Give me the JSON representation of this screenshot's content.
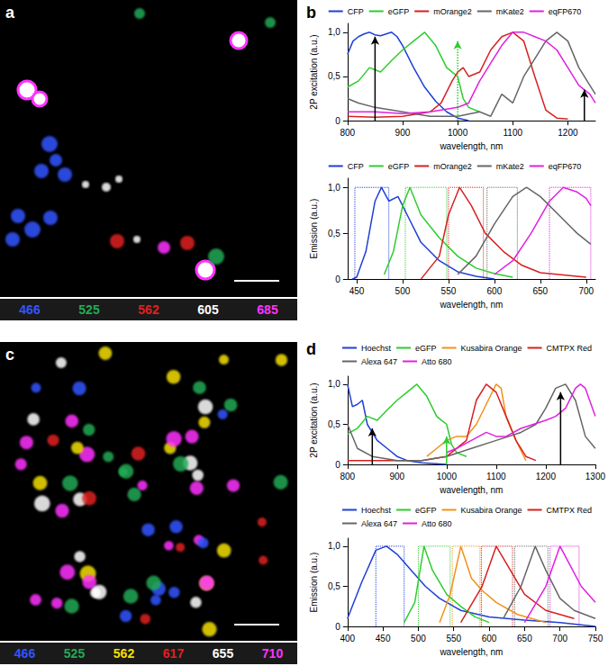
{
  "images": [
    {
      "panel": "a",
      "channels": [
        {
          "label": "466",
          "color": "#3355ff"
        },
        {
          "label": "525",
          "color": "#22aa55"
        },
        {
          "label": "562",
          "color": "#e02020"
        },
        {
          "label": "605",
          "color": "#ffffff"
        },
        {
          "label": "685",
          "color": "#ff33ff"
        }
      ]
    },
    {
      "panel": "c",
      "channels": [
        {
          "label": "466",
          "color": "#3355ff"
        },
        {
          "label": "525",
          "color": "#22aa55"
        },
        {
          "label": "562",
          "color": "#f5e000"
        },
        {
          "label": "617",
          "color": "#e02020"
        },
        {
          "label": "655",
          "color": "#ffffff"
        },
        {
          "label": "710",
          "color": "#ff33ff"
        }
      ]
    }
  ],
  "chart_data": [
    {
      "type": "line",
      "panel": "b",
      "xlabel": "wavelength, nm",
      "ylabel": "2P excitation (a.u.)",
      "xlim": [
        800,
        1250
      ],
      "xticks": [
        800,
        900,
        1000,
        1100,
        1200
      ],
      "ylim": [
        0,
        1.1
      ],
      "yticks": [
        0,
        {
          "value": 0.5,
          "label": "0,5"
        },
        {
          "value": 1,
          "label": "1,0"
        }
      ],
      "grid": false,
      "legend": "top",
      "series": [
        {
          "name": "CFP",
          "color": "#1f3fd6",
          "x": [
            800,
            810,
            820,
            830,
            840,
            850,
            860,
            870,
            880,
            890,
            900,
            920,
            940,
            960,
            980,
            1000,
            1020
          ],
          "values": [
            0.75,
            0.9,
            0.95,
            0.98,
            1.0,
            0.97,
            0.96,
            0.98,
            1.0,
            0.95,
            0.85,
            0.6,
            0.38,
            0.22,
            0.1,
            0.03,
            0.0
          ]
        },
        {
          "name": "eGFP",
          "color": "#2ecc2e",
          "x": [
            800,
            820,
            840,
            860,
            880,
            900,
            920,
            940,
            960,
            980,
            990,
            1000,
            1010,
            1020,
            1040
          ],
          "values": [
            0.38,
            0.45,
            0.6,
            0.55,
            0.68,
            0.8,
            0.9,
            1.0,
            0.85,
            0.6,
            0.55,
            0.5,
            0.25,
            0.15,
            0.1
          ]
        },
        {
          "name": "mOrange2",
          "color": "#d62020",
          "x": [
            800,
            850,
            900,
            950,
            970,
            990,
            1000,
            1010,
            1020,
            1040,
            1060,
            1080,
            1100,
            1120,
            1140,
            1160,
            1180,
            1200
          ],
          "values": [
            0.05,
            0.04,
            0.05,
            0.1,
            0.2,
            0.45,
            0.55,
            0.6,
            0.5,
            0.55,
            0.8,
            0.95,
            1.0,
            0.9,
            0.5,
            0.12,
            0.03,
            0.02
          ]
        },
        {
          "name": "mKate2",
          "color": "#666666",
          "x": [
            800,
            820,
            850,
            900,
            950,
            1000,
            1040,
            1060,
            1080,
            1100,
            1120,
            1140,
            1160,
            1180,
            1200,
            1220,
            1240,
            1250
          ],
          "values": [
            0.25,
            0.2,
            0.15,
            0.1,
            0.05,
            0.05,
            0.1,
            0.05,
            0.3,
            0.2,
            0.5,
            0.7,
            0.9,
            1.0,
            0.9,
            0.6,
            0.4,
            0.3
          ]
        },
        {
          "name": "eqFP670",
          "color": "#e020e0",
          "x": [
            800,
            850,
            900,
            950,
            1000,
            1020,
            1040,
            1060,
            1080,
            1100,
            1120,
            1140,
            1160,
            1180,
            1200,
            1220,
            1240,
            1250
          ],
          "values": [
            0.1,
            0.1,
            0.08,
            0.1,
            0.15,
            0.2,
            0.45,
            0.65,
            0.85,
            1.0,
            1.0,
            0.95,
            0.9,
            0.8,
            0.6,
            0.4,
            0.3,
            0.2
          ]
        }
      ],
      "arrows": [
        {
          "x": 850,
          "y": 0.95,
          "color": "#000000",
          "line_style": "solid"
        },
        {
          "x": 1000,
          "y": 0.9,
          "color": "#2ecc2e",
          "line_style": "dotted"
        },
        {
          "x": 1230,
          "y": 0.35,
          "color": "#000000",
          "line_style": "solid"
        }
      ]
    },
    {
      "type": "line",
      "xlabel": "wavelength, nm",
      "ylabel": "Emission (a.u.)",
      "xlim": [
        440,
        710
      ],
      "xticks": [
        450,
        500,
        550,
        600,
        650,
        700
      ],
      "ylim": [
        0,
        1.1
      ],
      "yticks": [
        0,
        {
          "value": 0.5,
          "label": "0,5"
        },
        {
          "value": 1,
          "label": "1,0"
        }
      ],
      "grid": false,
      "legend": "top",
      "series": [
        {
          "name": "CFP",
          "color": "#1f3fd6",
          "x": [
            445,
            450,
            460,
            470,
            477,
            485,
            495,
            505,
            520,
            540,
            560,
            580,
            600
          ],
          "values": [
            0,
            0.02,
            0.3,
            0.85,
            1.0,
            0.85,
            0.9,
            0.7,
            0.4,
            0.2,
            0.08,
            0.03,
            0.0
          ]
        },
        {
          "name": "eGFP",
          "color": "#2ecc2e",
          "x": [
            480,
            490,
            500,
            508,
            520,
            540,
            560,
            580,
            600,
            620
          ],
          "values": [
            0.05,
            0.3,
            0.8,
            1.0,
            0.7,
            0.45,
            0.25,
            0.12,
            0.06,
            0.02
          ]
        },
        {
          "name": "mOrange2",
          "color": "#d62020",
          "x": [
            520,
            540,
            550,
            562,
            575,
            590,
            610,
            630,
            650,
            700
          ],
          "values": [
            0,
            0.25,
            0.7,
            1.0,
            0.8,
            0.5,
            0.3,
            0.15,
            0.07,
            0.02
          ]
        },
        {
          "name": "mKate2",
          "color": "#666666",
          "x": [
            560,
            580,
            600,
            620,
            635,
            650,
            670,
            690,
            705
          ],
          "values": [
            0.05,
            0.25,
            0.6,
            0.9,
            1.0,
            0.9,
            0.7,
            0.5,
            0.38
          ]
        },
        {
          "name": "eqFP670",
          "color": "#e020e0",
          "x": [
            600,
            620,
            640,
            660,
            675,
            690,
            700,
            705
          ],
          "values": [
            0.05,
            0.2,
            0.5,
            0.85,
            1.0,
            0.95,
            0.88,
            0.8
          ]
        }
      ],
      "detection_bands": [
        {
          "color": "#1f3fd6",
          "range": [
            448,
            485
          ],
          "level": 1,
          "line_style": "dotted"
        },
        {
          "color": "#2ecc2e",
          "range": [
            503,
            548
          ],
          "level": 1,
          "line_style": "dotted"
        },
        {
          "color": "#d62020",
          "range": [
            550,
            588
          ],
          "level": 1,
          "line_style": "dotted"
        },
        {
          "color": "#666666",
          "range": [
            592,
            625
          ],
          "level": 1,
          "line_style": "dotted"
        },
        {
          "color": "#e020e0",
          "range": [
            660,
            705
          ],
          "level": 1,
          "line_style": "dotted"
        }
      ]
    },
    {
      "type": "line",
      "panel": "d",
      "xlabel": "wavelength, nm",
      "ylabel": "2P excitation (a.u.)",
      "xlim": [
        800,
        1300
      ],
      "xticks": [
        800,
        900,
        1000,
        1100,
        1200,
        1300
      ],
      "ylim": [
        0,
        1.1
      ],
      "yticks": [
        0,
        {
          "value": 0.5,
          "label": "0,5"
        },
        {
          "value": 1,
          "label": "1,0"
        }
      ],
      "grid": false,
      "legend": "top",
      "series": [
        {
          "name": "Hoechst",
          "color": "#1f3fd6",
          "x": [
            800,
            810,
            820,
            830,
            840,
            860,
            880,
            900,
            920,
            950,
            1000
          ],
          "values": [
            1.0,
            0.72,
            0.75,
            0.8,
            0.5,
            0.3,
            0.2,
            0.1,
            0.05,
            0.02,
            0.0
          ]
        },
        {
          "name": "eGFP",
          "color": "#2ecc2e",
          "x": [
            800,
            820,
            840,
            860,
            880,
            900,
            920,
            940,
            960,
            980,
            990,
            1000,
            1010,
            1020,
            1040
          ],
          "values": [
            0.38,
            0.45,
            0.6,
            0.55,
            0.68,
            0.8,
            0.9,
            1.0,
            0.85,
            0.6,
            0.55,
            0.5,
            0.25,
            0.15,
            0.1
          ]
        },
        {
          "name": "Kusabira Orange",
          "color": "#f0921a",
          "x": [
            960,
            980,
            1000,
            1020,
            1040,
            1060,
            1080,
            1100,
            1110,
            1120,
            1140,
            1160
          ],
          "values": [
            0.1,
            0.2,
            0.3,
            0.35,
            0.35,
            0.5,
            0.75,
            1.0,
            0.95,
            0.6,
            0.3,
            0.05
          ]
        },
        {
          "name": "CMTPX Red",
          "color": "#d62020",
          "x": [
            800,
            850,
            900,
            950,
            1000,
            1040,
            1060,
            1080,
            1100,
            1120,
            1140,
            1160,
            1180
          ],
          "values": [
            0.05,
            0.05,
            0.05,
            0.05,
            0.1,
            0.3,
            0.8,
            1.0,
            0.9,
            0.6,
            0.3,
            0.1,
            0.05
          ]
        },
        {
          "name": "Alexa 647",
          "color": "#666666",
          "x": [
            800,
            820,
            850,
            900,
            950,
            1000,
            1050,
            1100,
            1150,
            1180,
            1200,
            1220,
            1240,
            1260,
            1280,
            1300
          ],
          "values": [
            0.5,
            0.2,
            0.1,
            0.05,
            0.05,
            0.1,
            0.2,
            0.3,
            0.4,
            0.5,
            0.7,
            0.95,
            1.0,
            0.8,
            0.35,
            0.2
          ]
        },
        {
          "name": "Atto 680",
          "color": "#e020e0",
          "x": [
            1000,
            1020,
            1050,
            1080,
            1100,
            1120,
            1150,
            1200,
            1220,
            1240,
            1260,
            1270,
            1280,
            1300
          ],
          "values": [
            0.15,
            0.2,
            0.3,
            0.4,
            0.35,
            0.35,
            0.45,
            0.55,
            0.6,
            0.7,
            0.95,
            1.0,
            0.95,
            0.6
          ]
        }
      ],
      "arrows": [
        {
          "x": 850,
          "y": 0.45,
          "color": "#000000",
          "line_style": "solid"
        },
        {
          "x": 1000,
          "y": 0.35,
          "color": "#2ecc2e",
          "line_style": "solid"
        },
        {
          "x": 1230,
          "y": 0.9,
          "color": "#000000",
          "line_style": "solid"
        }
      ]
    },
    {
      "type": "line",
      "xlabel": "wavelength, nm",
      "ylabel": "Emission (a.u.)",
      "xlim": [
        400,
        750
      ],
      "xticks": [
        400,
        450,
        500,
        550,
        600,
        650,
        700,
        750
      ],
      "ylim": [
        0,
        1.1
      ],
      "yticks": [
        0,
        {
          "value": 0.5,
          "label": "0,5"
        },
        {
          "value": 1,
          "label": "1,0"
        }
      ],
      "grid": false,
      "legend": "top",
      "series": [
        {
          "name": "Hoechst",
          "color": "#1f3fd6",
          "x": [
            400,
            420,
            440,
            455,
            470,
            490,
            510,
            530,
            560,
            600,
            650,
            700,
            750
          ],
          "values": [
            0.1,
            0.55,
            0.95,
            1.0,
            0.9,
            0.7,
            0.5,
            0.35,
            0.2,
            0.12,
            0.08,
            0.05,
            0.0
          ]
        },
        {
          "name": "eGFP",
          "color": "#2ecc2e",
          "x": [
            480,
            495,
            508,
            520,
            540,
            560,
            580,
            600
          ],
          "values": [
            0.05,
            0.3,
            1.0,
            0.7,
            0.4,
            0.25,
            0.12,
            0.05
          ]
        },
        {
          "name": "Kusabira Orange",
          "color": "#f0921a",
          "x": [
            530,
            545,
            560,
            575,
            590,
            610,
            640,
            680
          ],
          "values": [
            0.05,
            0.4,
            1.0,
            0.6,
            0.45,
            0.3,
            0.15,
            0.05
          ]
        },
        {
          "name": "CMTPX Red",
          "color": "#d62020",
          "x": [
            560,
            590,
            610,
            630,
            650,
            680,
            720
          ],
          "values": [
            0.05,
            0.5,
            1.0,
            0.7,
            0.4,
            0.2,
            0.1
          ]
        },
        {
          "name": "Alexa 647",
          "color": "#666666",
          "x": [
            620,
            645,
            665,
            680,
            700,
            720,
            750
          ],
          "values": [
            0.1,
            0.5,
            1.0,
            0.7,
            0.35,
            0.2,
            0.1
          ]
        },
        {
          "name": "Atto 680",
          "color": "#e020e0",
          "x": [
            650,
            680,
            700,
            715,
            730,
            750
          ],
          "values": [
            0.05,
            0.5,
            1.0,
            0.75,
            0.5,
            0.3
          ]
        }
      ],
      "detection_bands": [
        {
          "color": "#1f3fd6",
          "range": [
            440,
            480
          ],
          "level": 1,
          "line_style": "dotted"
        },
        {
          "color": "#2ecc2e",
          "range": [
            500,
            545
          ],
          "level": 1,
          "line_style": "dotted"
        },
        {
          "color": "#f0921a",
          "range": [
            548,
            587
          ],
          "level": 1,
          "line_style": "dotted"
        },
        {
          "color": "#d62020",
          "range": [
            589,
            633
          ],
          "level": 1,
          "line_style": "dotted"
        },
        {
          "color": "#666666",
          "range": [
            636,
            683
          ],
          "level": 1,
          "line_style": "dotted"
        },
        {
          "color": "#e020e0",
          "range": [
            686,
            727
          ],
          "level": 1,
          "line_style": "dotted"
        }
      ]
    }
  ]
}
